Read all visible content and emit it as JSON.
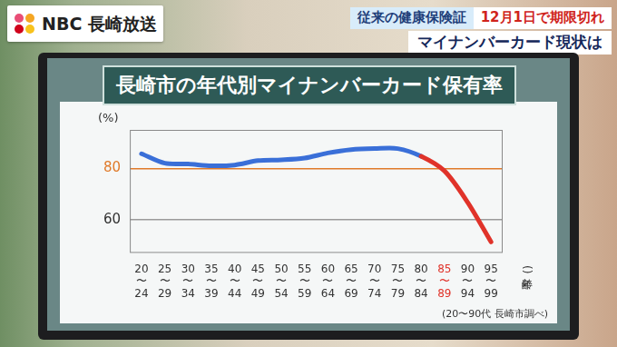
{
  "header": {
    "logo": "NBC 長崎放送",
    "banner_left": "従来の健康保険証",
    "banner_right": "12月1日で期限切れ",
    "banner_line2": "マイナンバーカード現状は"
  },
  "chart_data": {
    "type": "line",
    "title": "長崎市の年代別マイナンバーカード保有率",
    "ylabel": "(%)",
    "xlabel": "(年齢)",
    "note": "(20〜90代 長崎市調べ)",
    "categories": [
      "20〜24",
      "25〜29",
      "30〜34",
      "35〜39",
      "40〜44",
      "45〜49",
      "50〜54",
      "55〜59",
      "60〜64",
      "65〜69",
      "70〜74",
      "75〜79",
      "80〜84",
      "85〜89",
      "90〜94",
      "95〜99"
    ],
    "values": [
      85.7,
      82,
      81.7,
      81,
      81.3,
      83,
      83.3,
      84,
      86,
      87.3,
      87.7,
      87.7,
      84.7,
      79,
      66.7,
      51.3
    ],
    "colors": [
      "#3a6fd8",
      "#3a6fd8",
      "#3a6fd8",
      "#3a6fd8",
      "#3a6fd8",
      "#3a6fd8",
      "#3a6fd8",
      "#3a6fd8",
      "#3a6fd8",
      "#3a6fd8",
      "#3a6fd8",
      "#3a6fd8",
      "#3a6fd8",
      "#e0332a",
      "#e0332a",
      "#e0332a"
    ],
    "ylim": [
      47,
      95
    ],
    "yticks": [
      60,
      80
    ],
    "grid": true
  }
}
